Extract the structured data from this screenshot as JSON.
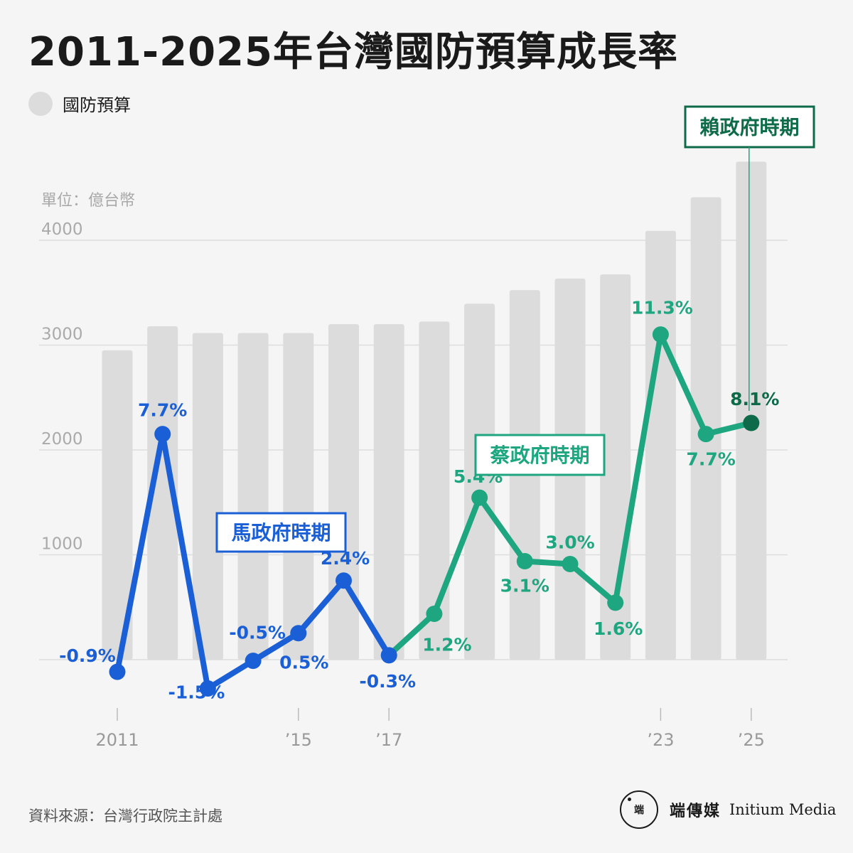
{
  "title": "2011-2025年台灣國防預算成長率",
  "legend": {
    "label": "國防預算",
    "color": "#dcdcdc"
  },
  "unit_label": "單位：億台幣",
  "source": "資料來源：台灣行政院主計處",
  "brand": {
    "logo_text": "端",
    "name_zh": "端傳媒",
    "name_en": "Initium Media"
  },
  "colors": {
    "ma": "#1a5fd6",
    "tsai": "#1da67f",
    "lai": "#0d6b4a",
    "bar": "#dcdcdc",
    "grid": "#dddddd",
    "axis_text": "#999999"
  },
  "chart_data": {
    "type": "bar+line",
    "y_ticks": [
      "4000",
      "3000",
      "2000",
      "1000"
    ],
    "y_tick_values": [
      4000,
      3000,
      2000,
      1000
    ],
    "ylim": [
      0,
      4000
    ],
    "x_tick_labels": [
      {
        "index": 0,
        "label": "2011"
      },
      {
        "index": 4,
        "label": "’15"
      },
      {
        "index": 6,
        "label": "’17"
      },
      {
        "index": 12,
        "label": "’23"
      },
      {
        "index": 14,
        "label": "’25"
      }
    ],
    "years": [
      2011,
      2012,
      2013,
      2014,
      2015,
      2016,
      2017,
      2018,
      2019,
      2020,
      2021,
      2022,
      2023,
      2024,
      2025
    ],
    "budget": [
      2950,
      3180,
      3115,
      3115,
      3115,
      3200,
      3200,
      3225,
      3395,
      3525,
      3635,
      3675,
      4090,
      4410,
      4750
    ],
    "growth_rate": [
      -0.9,
      7.7,
      -1.5,
      -0.5,
      0.5,
      2.4,
      -0.3,
      1.2,
      5.4,
      3.1,
      3.0,
      1.6,
      11.3,
      7.7,
      8.1
    ],
    "growth_labels": [
      "-0.9%",
      "7.7%",
      "-1.5%",
      "-0.5%",
      "0.5%",
      "2.4%",
      "-0.3%",
      "1.2%",
      "5.4%",
      "3.1%",
      "3.0%",
      "1.6%",
      "11.3%",
      "7.7%",
      "8.1%"
    ],
    "periods": [
      {
        "name": "馬政府時期",
        "start": 0,
        "end": 6,
        "color_key": "ma"
      },
      {
        "name": "蔡政府時期",
        "start": 6,
        "end": 13,
        "color_key": "tsai"
      },
      {
        "name": "賴政府時期",
        "start": 14,
        "end": 14,
        "color_key": "lai"
      }
    ]
  }
}
